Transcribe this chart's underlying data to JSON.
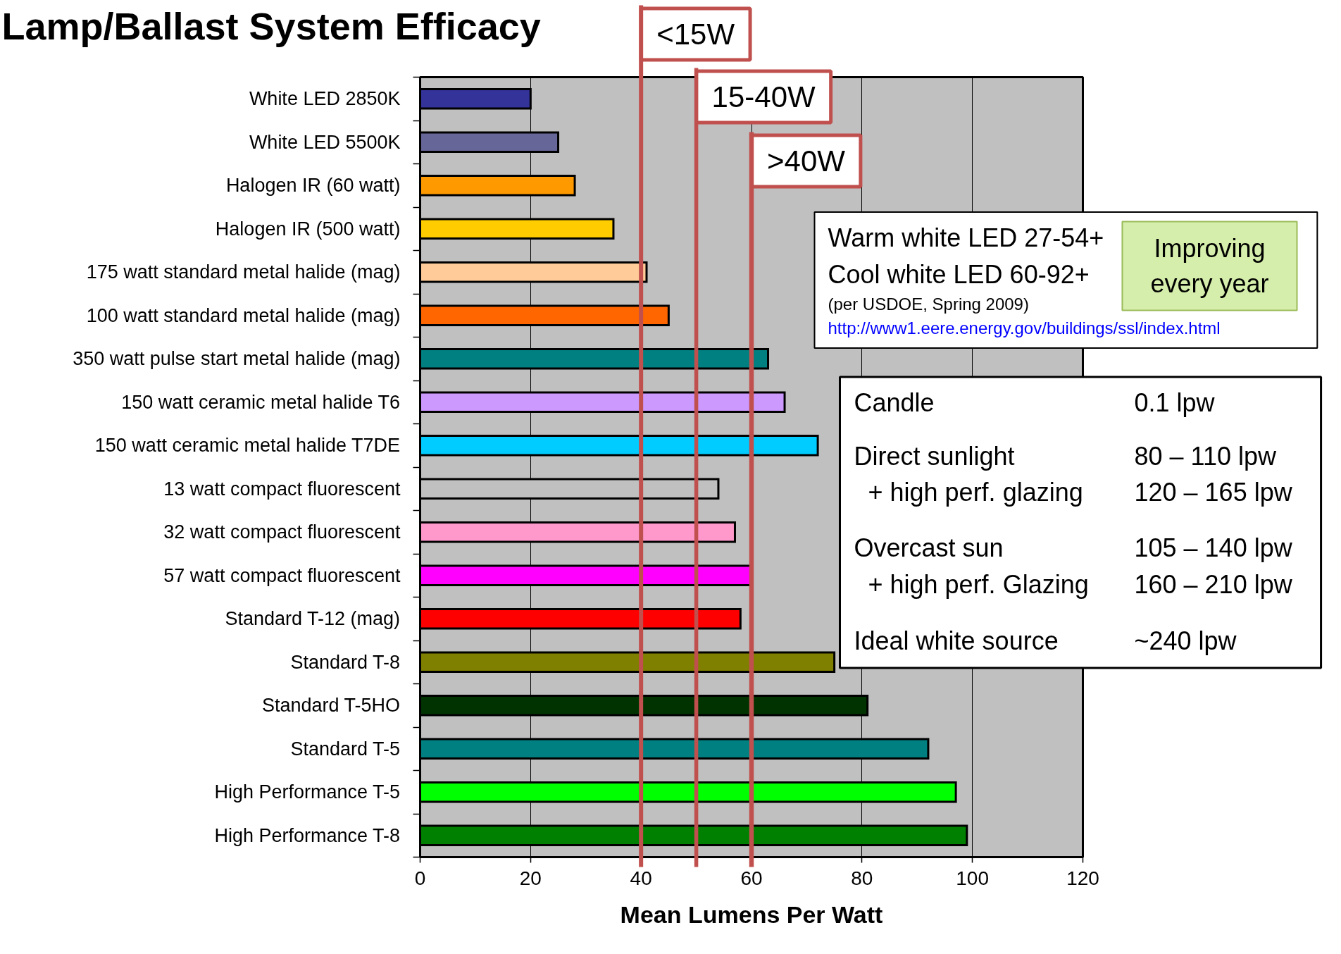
{
  "chart_data": {
    "type": "bar",
    "orientation": "horizontal",
    "title": "Lamp/Ballast System Efficacy",
    "xlabel": "Mean Lumens Per Watt",
    "categories": [
      "White LED 2850K",
      "White LED 5500K",
      "Halogen IR (60 watt)",
      "Halogen IR (500 watt)",
      "175 watt standard metal halide (mag)",
      "100 watt standard metal halide (mag)",
      "350 watt pulse start metal halide (mag)",
      "150 watt ceramic metal halide T6",
      "150 watt ceramic metal halide T7DE",
      "13 watt compact fluorescent",
      "32 watt compact fluorescent",
      "57 watt compact fluorescent",
      "Standard T-12 (mag)",
      "Standard T-8",
      "Standard T-5HO",
      "Standard T-5",
      "High Performance T-5",
      "High Performance T-8"
    ],
    "values": [
      20,
      25,
      28,
      35,
      41,
      45,
      63,
      66,
      72,
      54,
      57,
      60,
      58,
      75,
      81,
      92,
      97,
      99
    ],
    "colors": [
      "#333399",
      "#666699",
      "#ff9900",
      "#ffcc00",
      "#ffcc99",
      "#ff6600",
      "#008080",
      "#cc99ff",
      "#00ccff",
      "#c0c0c0",
      "#ff99cc",
      "#ff00ff",
      "#ff0000",
      "#808000",
      "#003300",
      "#008080",
      "#00ff00",
      "#008000"
    ],
    "xlim": [
      0,
      120
    ],
    "xticks": [
      0,
      20,
      40,
      60,
      80,
      100,
      120
    ],
    "grid": "x",
    "ref_lines": [
      {
        "axis": "x",
        "value": 40,
        "label": "<15W",
        "color": "#c0504d"
      },
      {
        "axis": "x",
        "value": 50,
        "label": "15-40W",
        "color": "#c0504d"
      },
      {
        "axis": "x",
        "value": 60,
        "label": ">40W",
        "color": "#c0504d"
      }
    ],
    "annotations": [
      "Warm white LED 27-54+",
      "Cool white LED 60-92+",
      "(per USDOE, Spring 2009)",
      "http://www1.eere.energy.gov/buildings/ssl/index.html",
      "Improving every year",
      "Candle",
      "0.1 lpw",
      "Direct sunlight",
      "80 – 110 lpw",
      "+ high perf. glazing",
      "120 – 165 lpw",
      "Overcast sun",
      "105 – 140 lpw",
      "+ high perf. Glazing",
      "160 – 210 lpw",
      "Ideal white source",
      "~240 lpw"
    ]
  }
}
